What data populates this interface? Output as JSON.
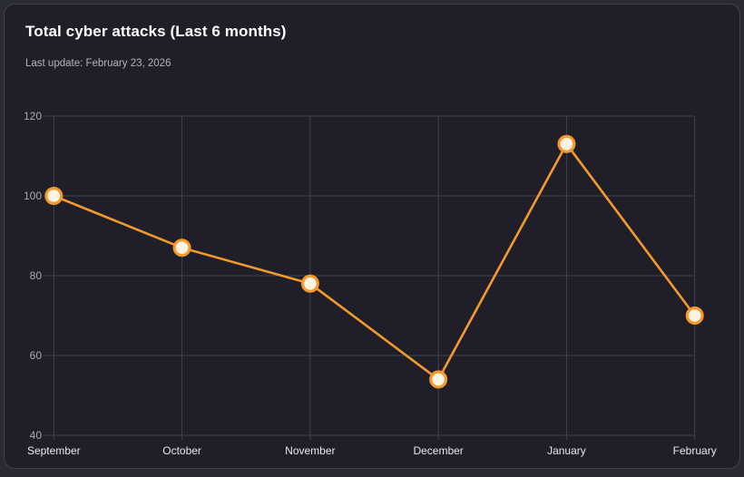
{
  "header": {
    "title": "Total cyber attacks (Last 6 months)",
    "subtitle": "Last update: February 23, 2026"
  },
  "colors": {
    "outer_bg": "#2a2a34",
    "card_bg": "#1f1e29",
    "card_border": "#3e434e",
    "grid": "#3f444e",
    "line": "#f49a2d",
    "marker_fill": "#fdf3e3",
    "marker_stroke": "#f49a2d",
    "y_tick_label": "#a8a8b2",
    "x_tick_label": "#e8e8ec",
    "title_text": "#ffffff",
    "subtitle_text": "#b4b2bd"
  },
  "chart_data": {
    "type": "line",
    "title": "Total cyber attacks (Last 6 months)",
    "subtitle": "Last update: February 23, 2026",
    "categories": [
      "September",
      "October",
      "November",
      "December",
      "January",
      "February"
    ],
    "series": [
      {
        "name": "Total cyber attacks",
        "values": [
          100,
          87,
          78,
          54,
          113,
          70
        ]
      }
    ],
    "ylim": [
      40,
      120
    ],
    "yticks": [
      40,
      60,
      80,
      100,
      120
    ],
    "xlabel": "",
    "ylabel": "",
    "grid": true,
    "legend": "none",
    "marker": "circle"
  }
}
